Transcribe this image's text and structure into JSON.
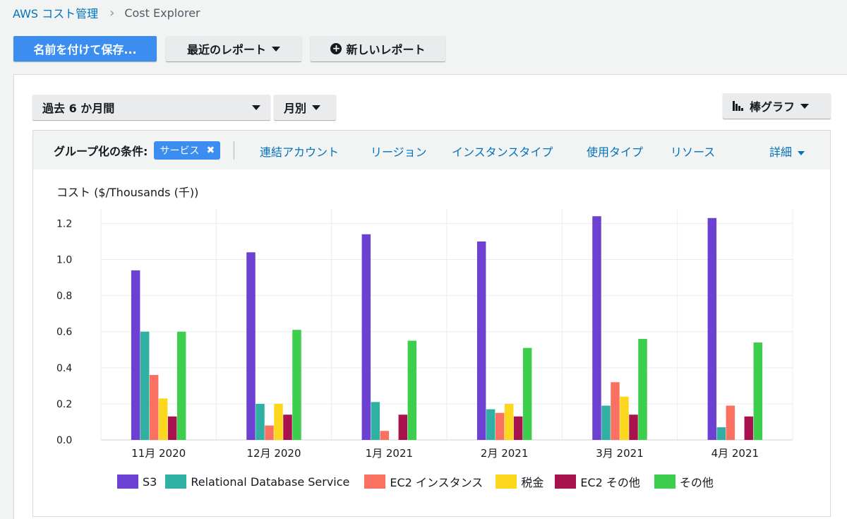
{
  "breadcrumb": {
    "parent": "AWS コスト管理",
    "current": "Cost Explorer"
  },
  "toolbar": {
    "save_as": "名前を付けて保存...",
    "recent_reports": "最近のレポート",
    "new_report": "新しいレポート"
  },
  "filters": {
    "date_range": "過去 6 か月間",
    "granularity": "月別",
    "chart_type": "棒グラフ"
  },
  "groupby": {
    "label": "グループ化の条件:",
    "active_chip": "サービス",
    "options": [
      "連結アカウント",
      "リージョン",
      "インスタンスタイプ",
      "使用タイプ",
      "リソース"
    ],
    "more": "詳細"
  },
  "chart_data": {
    "type": "bar",
    "ylabel": "コスト ($/Thousands (千))",
    "ylim": [
      0,
      1.2
    ],
    "yticks": [
      "0.0",
      "0.2",
      "0.4",
      "0.6",
      "0.8",
      "1.0",
      "1.2"
    ],
    "categories": [
      "11月 2020",
      "12月 2020",
      "1月 2021",
      "2月 2021",
      "3月 2021",
      "4月 2021"
    ],
    "series": [
      {
        "name": "S3",
        "color": "#6c40d0",
        "values": [
          0.94,
          1.04,
          1.14,
          1.1,
          1.24,
          1.23
        ]
      },
      {
        "name": "Relational Database Service",
        "color": "#2fb0a3",
        "values": [
          0.6,
          0.2,
          0.21,
          0.17,
          0.19,
          0.07
        ]
      },
      {
        "name": "EC2 インスタンス",
        "color": "#fa7161",
        "values": [
          0.36,
          0.08,
          0.05,
          0.15,
          0.32,
          0.19
        ]
      },
      {
        "name": "税金",
        "color": "#fbd81e",
        "values": [
          0.23,
          0.2,
          0.0,
          0.2,
          0.24,
          0.0
        ]
      },
      {
        "name": "EC2 その他",
        "color": "#a8134e",
        "values": [
          0.13,
          0.14,
          0.14,
          0.13,
          0.14,
          0.13
        ]
      },
      {
        "name": "その他",
        "color": "#3ece4d",
        "values": [
          0.6,
          0.61,
          0.55,
          0.51,
          0.56,
          0.54
        ]
      }
    ],
    "grid": true,
    "legend": "bottom"
  }
}
